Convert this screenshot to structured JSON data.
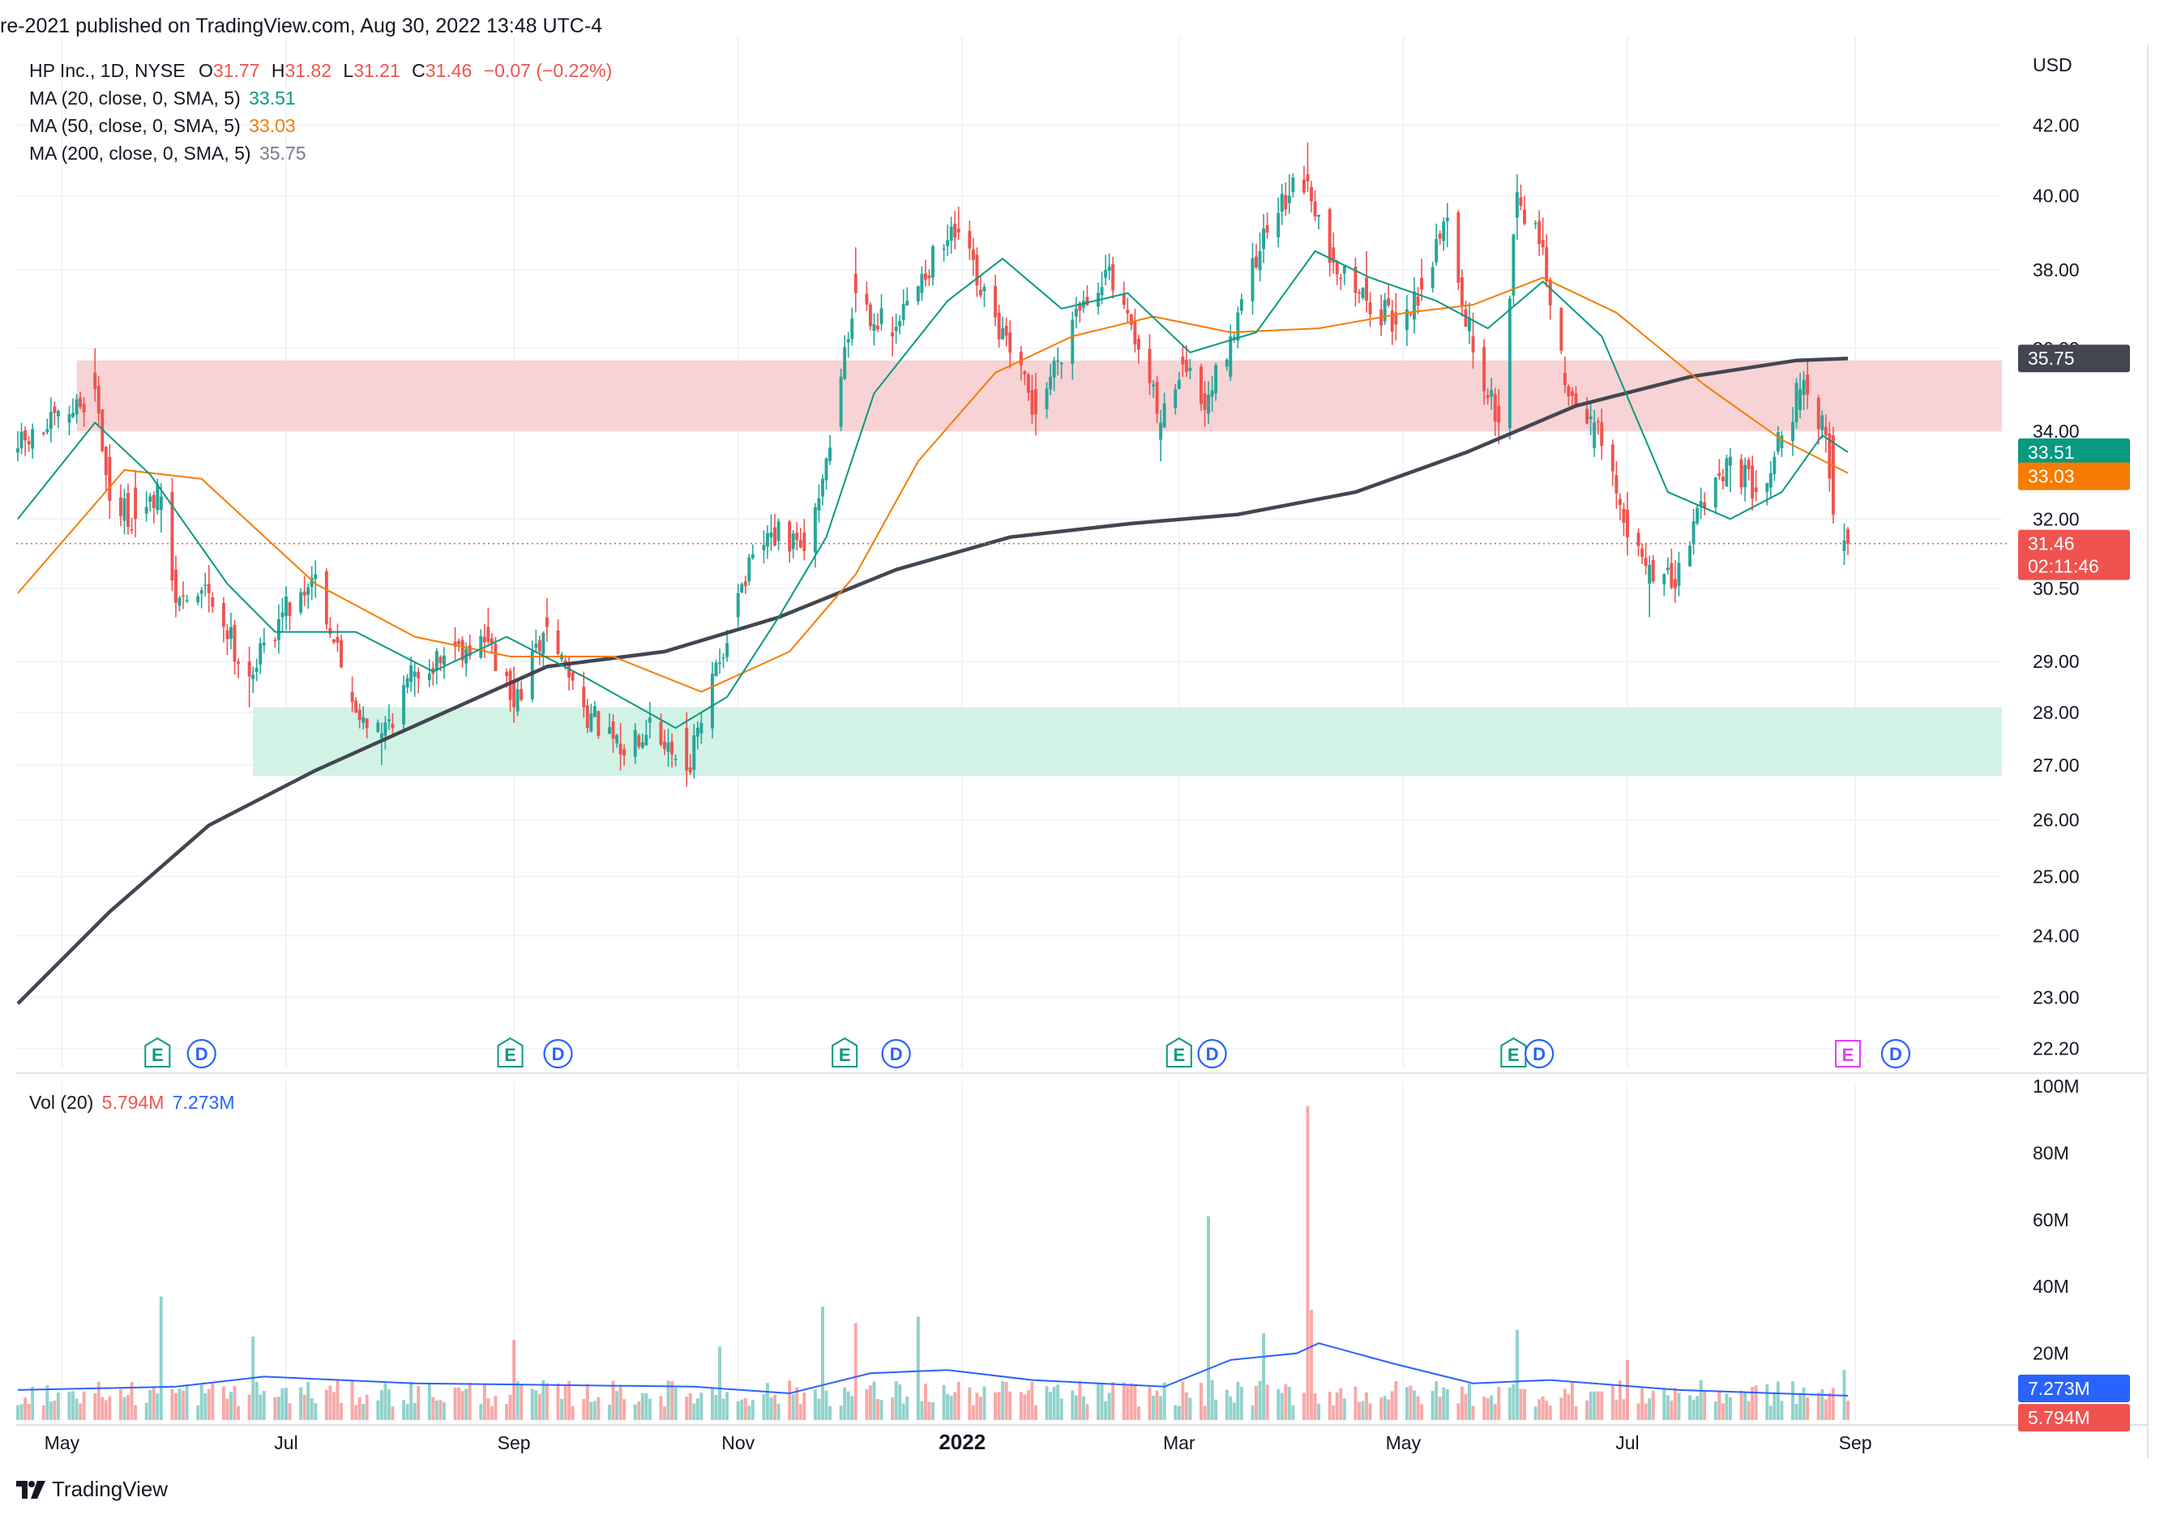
{
  "header": {
    "published": "re-2021 published on TradingView.com, Aug 30, 2022 13:48 UTC-4"
  },
  "legend": {
    "symbol": "HP Inc., 1D, NYSE",
    "o_label": "O",
    "o": "31.77",
    "h_label": "H",
    "h": "31.82",
    "l_label": "L",
    "l": "31.21",
    "c_label": "C",
    "c": "31.46",
    "change": "−0.07 (−0.22%)",
    "ma20_label": "MA (20, close, 0, SMA, 5)",
    "ma20": "33.51",
    "ma50_label": "MA (50, close, 0, SMA, 5)",
    "ma50": "33.03",
    "ma200_label": "MA (200, close, 0, SMA, 5)",
    "ma200": "35.75",
    "vol_label": "Vol (20)",
    "vol": "5.794M",
    "vol_ma": "7.273M"
  },
  "price_axis": {
    "currency": "USD",
    "ticks": [
      "42.00",
      "40.00",
      "38.00",
      "36.00",
      "34.00",
      "32.00",
      "30.50",
      "29.00",
      "28.00",
      "27.00",
      "26.00",
      "25.00",
      "24.00",
      "23.00",
      "22.20"
    ]
  },
  "badges": {
    "ma200": "35.75",
    "ma20": "33.51",
    "ma50": "33.03",
    "last": "31.46",
    "countdown": "02:11:46",
    "vol_ma": "7.273M",
    "vol": "5.794M"
  },
  "volume_axis": {
    "ticks": [
      "100M",
      "80M",
      "60M",
      "40M",
      "20M"
    ]
  },
  "time_axis": {
    "labels": [
      "May",
      "Jul",
      "Sep",
      "Nov",
      "2022",
      "Mar",
      "May",
      "Jul",
      "Sep"
    ]
  },
  "events": [
    {
      "type": "E",
      "date": "2021-05-27"
    },
    {
      "type": "D",
      "date": "2021-06-08"
    },
    {
      "type": "E",
      "date": "2021-08-31"
    },
    {
      "type": "D",
      "date": "2021-09-13"
    },
    {
      "type": "E",
      "date": "2021-11-30"
    },
    {
      "type": "D",
      "date": "2021-12-14"
    },
    {
      "type": "E",
      "date": "2022-03-01"
    },
    {
      "type": "D",
      "date": "2022-03-10"
    },
    {
      "type": "E",
      "date": "2022-05-31"
    },
    {
      "type": "D",
      "date": "2022-06-07"
    },
    {
      "type": "E",
      "date": "2022-08-30"
    },
    {
      "type": "D",
      "date": "2022-09-12"
    }
  ],
  "colors": {
    "up": "#26a69a",
    "down": "#ef5350",
    "ma20": "#089981",
    "ma50": "#f57c00",
    "ma200": "#434651",
    "vol_ma": "#2962ff",
    "resistance_zone": "#f7d3d5",
    "support_zone": "#d2f2e6",
    "earnings_upcoming": "#e040fb",
    "dividend": "#2962ff"
  },
  "footer": {
    "brand": "TradingView"
  },
  "chart_data": {
    "type": "candlestick",
    "title": "HP Inc., 1D, NYSE",
    "ylabel": "USD",
    "scale": "log",
    "x_range": [
      "2021-04-19",
      "2022-08-30"
    ],
    "y_range": [
      21.9,
      44.4
    ],
    "zones": [
      {
        "name": "resistance",
        "from": "2021-05-05",
        "to": "present",
        "y": [
          34.0,
          35.7
        ]
      },
      {
        "name": "support",
        "from": "2021-06-22",
        "to": "present",
        "y": [
          26.8,
          28.1
        ]
      }
    ],
    "ohlc_anchors": [
      {
        "date": "2021-04-19",
        "o": 33.5,
        "h": 34.0,
        "l": 33.3,
        "c": 33.6
      },
      {
        "date": "2021-05-03",
        "o": 34.2,
        "h": 34.6,
        "l": 33.9,
        "c": 34.4
      },
      {
        "date": "2021-05-10",
        "o": 35.4,
        "h": 36.0,
        "l": 34.7,
        "c": 35.0
      },
      {
        "date": "2021-05-14",
        "o": 33.4,
        "h": 33.7,
        "l": 32.0,
        "c": 32.4
      },
      {
        "date": "2021-05-21",
        "o": 32.7,
        "h": 33.1,
        "l": 31.6,
        "c": 32.0
      },
      {
        "date": "2021-05-28",
        "o": 32.2,
        "h": 32.8,
        "l": 31.7,
        "c": 32.5
      },
      {
        "date": "2021-06-01",
        "o": 30.9,
        "h": 31.2,
        "l": 29.9,
        "c": 30.2
      },
      {
        "date": "2021-06-10",
        "o": 30.6,
        "h": 31.0,
        "l": 30.0,
        "c": 30.4
      },
      {
        "date": "2021-06-21",
        "o": 29.0,
        "h": 29.3,
        "l": 28.1,
        "c": 28.7
      },
      {
        "date": "2021-06-30",
        "o": 29.9,
        "h": 30.3,
        "l": 29.6,
        "c": 30.0
      },
      {
        "date": "2021-07-09",
        "o": 30.7,
        "h": 31.1,
        "l": 30.3,
        "c": 30.8
      },
      {
        "date": "2021-07-19",
        "o": 28.4,
        "h": 28.7,
        "l": 28.0,
        "c": 28.2
      },
      {
        "date": "2021-07-27",
        "o": 27.5,
        "h": 27.8,
        "l": 27.0,
        "c": 27.6
      },
      {
        "date": "2021-08-05",
        "o": 28.7,
        "h": 29.0,
        "l": 28.3,
        "c": 28.8
      },
      {
        "date": "2021-08-16",
        "o": 29.4,
        "h": 29.7,
        "l": 29.0,
        "c": 29.3
      },
      {
        "date": "2021-08-25",
        "o": 29.7,
        "h": 30.1,
        "l": 29.3,
        "c": 29.4
      },
      {
        "date": "2021-09-01",
        "o": 28.6,
        "h": 28.9,
        "l": 27.8,
        "c": 28.1
      },
      {
        "date": "2021-09-10",
        "o": 29.9,
        "h": 30.3,
        "l": 29.4,
        "c": 29.7
      },
      {
        "date": "2021-09-20",
        "o": 28.5,
        "h": 28.8,
        "l": 27.9,
        "c": 28.1
      },
      {
        "date": "2021-09-30",
        "o": 27.4,
        "h": 27.8,
        "l": 26.9,
        "c": 27.2
      },
      {
        "date": "2021-10-08",
        "o": 27.8,
        "h": 28.2,
        "l": 27.5,
        "c": 27.9
      },
      {
        "date": "2021-10-18",
        "o": 27.7,
        "h": 28.0,
        "l": 26.6,
        "c": 26.9
      },
      {
        "date": "2021-10-22",
        "o": 27.6,
        "h": 28.0,
        "l": 27.4,
        "c": 27.8
      },
      {
        "date": "2021-11-01",
        "o": 29.9,
        "h": 30.6,
        "l": 29.7,
        "c": 30.4
      },
      {
        "date": "2021-11-10",
        "o": 31.6,
        "h": 32.1,
        "l": 31.3,
        "c": 31.7
      },
      {
        "date": "2021-11-19",
        "o": 31.7,
        "h": 32.0,
        "l": 31.1,
        "c": 31.3
      },
      {
        "date": "2021-11-24",
        "o": 32.5,
        "h": 33.0,
        "l": 32.3,
        "c": 32.9
      },
      {
        "date": "2021-11-29",
        "o": 34.1,
        "h": 35.5,
        "l": 34.0,
        "c": 35.3
      },
      {
        "date": "2021-12-03",
        "o": 37.9,
        "h": 38.6,
        "l": 36.9,
        "c": 37.4
      },
      {
        "date": "2021-12-13",
        "o": 36.4,
        "h": 36.8,
        "l": 35.8,
        "c": 36.3
      },
      {
        "date": "2021-12-21",
        "o": 37.4,
        "h": 38.1,
        "l": 37.2,
        "c": 37.9
      },
      {
        "date": "2021-12-31",
        "o": 39.1,
        "h": 39.7,
        "l": 38.8,
        "c": 39.0
      },
      {
        "date": "2022-01-05",
        "o": 38.4,
        "h": 38.6,
        "l": 37.3,
        "c": 37.6
      },
      {
        "date": "2022-01-14",
        "o": 36.4,
        "h": 36.7,
        "l": 35.5,
        "c": 35.9
      },
      {
        "date": "2022-01-21",
        "o": 35.0,
        "h": 35.4,
        "l": 33.9,
        "c": 34.4
      },
      {
        "date": "2022-02-01",
        "o": 36.8,
        "h": 37.3,
        "l": 36.5,
        "c": 37.0
      },
      {
        "date": "2022-02-09",
        "o": 37.8,
        "h": 38.4,
        "l": 37.6,
        "c": 38.0
      },
      {
        "date": "2022-02-17",
        "o": 36.7,
        "h": 37.0,
        "l": 35.9,
        "c": 36.1
      },
      {
        "date": "2022-02-24",
        "o": 33.8,
        "h": 34.5,
        "l": 33.3,
        "c": 34.2
      },
      {
        "date": "2022-03-02",
        "o": 35.8,
        "h": 36.1,
        "l": 35.3,
        "c": 35.6
      },
      {
        "date": "2022-03-08",
        "o": 34.9,
        "h": 35.2,
        "l": 34.1,
        "c": 34.5
      },
      {
        "date": "2022-03-15",
        "o": 35.3,
        "h": 36.6,
        "l": 35.2,
        "c": 36.3
      },
      {
        "date": "2022-03-23",
        "o": 38.0,
        "h": 39.0,
        "l": 37.7,
        "c": 38.5
      },
      {
        "date": "2022-03-31",
        "o": 39.8,
        "h": 40.6,
        "l": 39.5,
        "c": 40.0
      },
      {
        "date": "2022-04-05",
        "o": 40.6,
        "h": 41.5,
        "l": 40.1,
        "c": 40.4
      },
      {
        "date": "2022-04-12",
        "o": 38.6,
        "h": 39.0,
        "l": 37.9,
        "c": 38.2
      },
      {
        "date": "2022-04-21",
        "o": 37.8,
        "h": 38.5,
        "l": 36.9,
        "c": 37.2
      },
      {
        "date": "2022-04-29",
        "o": 36.9,
        "h": 37.4,
        "l": 36.2,
        "c": 36.6
      },
      {
        "date": "2022-05-06",
        "o": 37.8,
        "h": 38.3,
        "l": 37.2,
        "c": 37.5
      },
      {
        "date": "2022-05-13",
        "o": 39.3,
        "h": 39.8,
        "l": 38.6,
        "c": 39.4
      },
      {
        "date": "2022-05-20",
        "o": 36.3,
        "h": 36.9,
        "l": 35.5,
        "c": 35.9
      },
      {
        "date": "2022-05-27",
        "o": 34.6,
        "h": 35.0,
        "l": 33.7,
        "c": 34.2
      },
      {
        "date": "2022-06-01",
        "o": 39.4,
        "h": 40.6,
        "l": 38.8,
        "c": 40.1
      },
      {
        "date": "2022-06-08",
        "o": 38.8,
        "h": 39.4,
        "l": 38.4,
        "c": 38.6
      },
      {
        "date": "2022-06-14",
        "o": 35.4,
        "h": 35.8,
        "l": 34.9,
        "c": 35.1
      },
      {
        "date": "2022-06-22",
        "o": 33.6,
        "h": 34.5,
        "l": 33.4,
        "c": 34.2
      },
      {
        "date": "2022-07-01",
        "o": 32.2,
        "h": 32.6,
        "l": 31.2,
        "c": 31.6
      },
      {
        "date": "2022-07-07",
        "o": 30.6,
        "h": 31.2,
        "l": 29.9,
        "c": 31.0
      },
      {
        "date": "2022-07-14",
        "o": 30.7,
        "h": 31.1,
        "l": 30.2,
        "c": 30.5
      },
      {
        "date": "2022-07-21",
        "o": 32.3,
        "h": 32.7,
        "l": 32.0,
        "c": 32.4
      },
      {
        "date": "2022-07-29",
        "o": 33.2,
        "h": 33.6,
        "l": 32.6,
        "c": 33.4
      },
      {
        "date": "2022-08-05",
        "o": 32.7,
        "h": 33.1,
        "l": 32.4,
        "c": 32.6
      },
      {
        "date": "2022-08-12",
        "o": 33.6,
        "h": 34.0,
        "l": 33.4,
        "c": 33.9
      },
      {
        "date": "2022-08-17",
        "o": 34.5,
        "h": 35.4,
        "l": 34.3,
        "c": 35.0
      },
      {
        "date": "2022-08-24",
        "o": 34.1,
        "h": 34.4,
        "l": 33.5,
        "c": 33.9
      },
      {
        "date": "2022-08-26",
        "o": 33.9,
        "h": 34.1,
        "l": 31.9,
        "c": 32.1
      },
      {
        "date": "2022-08-29",
        "o": 31.3,
        "h": 31.9,
        "l": 31.0,
        "c": 31.53
      },
      {
        "date": "2022-08-30",
        "o": 31.77,
        "h": 31.82,
        "l": 31.21,
        "c": 31.46
      }
    ],
    "ma20": [
      {
        "date": "2021-04-19",
        "v": 32.0
      },
      {
        "date": "2021-05-10",
        "v": 34.2
      },
      {
        "date": "2021-05-25",
        "v": 33.0
      },
      {
        "date": "2021-06-15",
        "v": 30.6
      },
      {
        "date": "2021-06-28",
        "v": 29.6
      },
      {
        "date": "2021-07-20",
        "v": 29.6
      },
      {
        "date": "2021-08-10",
        "v": 28.8
      },
      {
        "date": "2021-08-30",
        "v": 29.5
      },
      {
        "date": "2021-09-20",
        "v": 28.7
      },
      {
        "date": "2021-10-15",
        "v": 27.7
      },
      {
        "date": "2021-10-29",
        "v": 28.3
      },
      {
        "date": "2021-11-12",
        "v": 29.9
      },
      {
        "date": "2021-11-25",
        "v": 31.6
      },
      {
        "date": "2021-12-08",
        "v": 34.9
      },
      {
        "date": "2021-12-28",
        "v": 37.2
      },
      {
        "date": "2022-01-12",
        "v": 38.3
      },
      {
        "date": "2022-01-28",
        "v": 37.0
      },
      {
        "date": "2022-02-15",
        "v": 37.4
      },
      {
        "date": "2022-03-04",
        "v": 35.9
      },
      {
        "date": "2022-03-22",
        "v": 36.4
      },
      {
        "date": "2022-04-07",
        "v": 38.5
      },
      {
        "date": "2022-04-22",
        "v": 37.8
      },
      {
        "date": "2022-05-10",
        "v": 37.2
      },
      {
        "date": "2022-05-24",
        "v": 36.5
      },
      {
        "date": "2022-06-08",
        "v": 37.7
      },
      {
        "date": "2022-06-24",
        "v": 36.3
      },
      {
        "date": "2022-07-12",
        "v": 32.6
      },
      {
        "date": "2022-07-29",
        "v": 32.0
      },
      {
        "date": "2022-08-12",
        "v": 32.6
      },
      {
        "date": "2022-08-23",
        "v": 33.9
      },
      {
        "date": "2022-08-30",
        "v": 33.51
      }
    ],
    "ma50": [
      {
        "date": "2021-04-19",
        "v": 30.4
      },
      {
        "date": "2021-05-18",
        "v": 33.1
      },
      {
        "date": "2021-06-08",
        "v": 32.9
      },
      {
        "date": "2021-07-09",
        "v": 30.6
      },
      {
        "date": "2021-08-05",
        "v": 29.5
      },
      {
        "date": "2021-08-31",
        "v": 29.1
      },
      {
        "date": "2021-09-28",
        "v": 29.1
      },
      {
        "date": "2021-10-22",
        "v": 28.4
      },
      {
        "date": "2021-11-15",
        "v": 29.2
      },
      {
        "date": "2021-12-03",
        "v": 30.8
      },
      {
        "date": "2021-12-20",
        "v": 33.3
      },
      {
        "date": "2022-01-10",
        "v": 35.4
      },
      {
        "date": "2022-01-31",
        "v": 36.3
      },
      {
        "date": "2022-02-22",
        "v": 36.8
      },
      {
        "date": "2022-03-15",
        "v": 36.4
      },
      {
        "date": "2022-04-08",
        "v": 36.5
      },
      {
        "date": "2022-05-02",
        "v": 36.9
      },
      {
        "date": "2022-05-20",
        "v": 37.1
      },
      {
        "date": "2022-06-08",
        "v": 37.8
      },
      {
        "date": "2022-06-28",
        "v": 36.9
      },
      {
        "date": "2022-07-22",
        "v": 35.1
      },
      {
        "date": "2022-08-12",
        "v": 33.8
      },
      {
        "date": "2022-08-30",
        "v": 33.03
      }
    ],
    "ma200": [
      {
        "date": "2021-04-19",
        "v": 22.9
      },
      {
        "date": "2021-05-14",
        "v": 24.4
      },
      {
        "date": "2021-06-10",
        "v": 25.9
      },
      {
        "date": "2021-07-09",
        "v": 26.9
      },
      {
        "date": "2021-08-10",
        "v": 27.9
      },
      {
        "date": "2021-09-10",
        "v": 28.9
      },
      {
        "date": "2021-10-12",
        "v": 29.2
      },
      {
        "date": "2021-11-12",
        "v": 29.9
      },
      {
        "date": "2021-12-14",
        "v": 30.9
      },
      {
        "date": "2022-01-14",
        "v": 31.6
      },
      {
        "date": "2022-02-16",
        "v": 31.9
      },
      {
        "date": "2022-03-17",
        "v": 32.1
      },
      {
        "date": "2022-04-18",
        "v": 32.6
      },
      {
        "date": "2022-05-18",
        "v": 33.5
      },
      {
        "date": "2022-06-17",
        "v": 34.6
      },
      {
        "date": "2022-07-18",
        "v": 35.3
      },
      {
        "date": "2022-08-16",
        "v": 35.7
      },
      {
        "date": "2022-08-30",
        "v": 35.75
      }
    ],
    "volume": {
      "unit": "M",
      "y_range": [
        0,
        100
      ],
      "spikes": [
        {
          "date": "2021-05-28",
          "v": 37
        },
        {
          "date": "2021-06-22",
          "v": 25
        },
        {
          "date": "2021-09-01",
          "v": 24
        },
        {
          "date": "2021-10-27",
          "v": 22
        },
        {
          "date": "2021-11-24",
          "v": 34
        },
        {
          "date": "2021-12-03",
          "v": 29
        },
        {
          "date": "2021-12-20",
          "v": 31
        },
        {
          "date": "2022-03-09",
          "v": 61
        },
        {
          "date": "2022-03-24",
          "v": 26
        },
        {
          "date": "2022-04-05",
          "v": 94
        },
        {
          "date": "2022-04-06",
          "v": 33
        },
        {
          "date": "2022-06-01",
          "v": 27
        },
        {
          "date": "2022-07-01",
          "v": 18
        },
        {
          "date": "2022-08-29",
          "v": 15
        }
      ],
      "ma20": [
        {
          "date": "2021-04-19",
          "v": 9
        },
        {
          "date": "2021-06-01",
          "v": 10
        },
        {
          "date": "2021-06-25",
          "v": 13
        },
        {
          "date": "2021-08-05",
          "v": 11
        },
        {
          "date": "2021-10-20",
          "v": 10
        },
        {
          "date": "2021-11-15",
          "v": 8
        },
        {
          "date": "2021-12-07",
          "v": 14
        },
        {
          "date": "2021-12-28",
          "v": 15
        },
        {
          "date": "2022-01-20",
          "v": 12
        },
        {
          "date": "2022-02-25",
          "v": 10
        },
        {
          "date": "2022-03-15",
          "v": 18
        },
        {
          "date": "2022-04-02",
          "v": 20
        },
        {
          "date": "2022-04-08",
          "v": 23
        },
        {
          "date": "2022-04-28",
          "v": 17
        },
        {
          "date": "2022-05-20",
          "v": 11
        },
        {
          "date": "2022-06-10",
          "v": 12
        },
        {
          "date": "2022-07-15",
          "v": 9
        },
        {
          "date": "2022-08-30",
          "v": 7.273
        }
      ],
      "last": 5.794
    }
  }
}
